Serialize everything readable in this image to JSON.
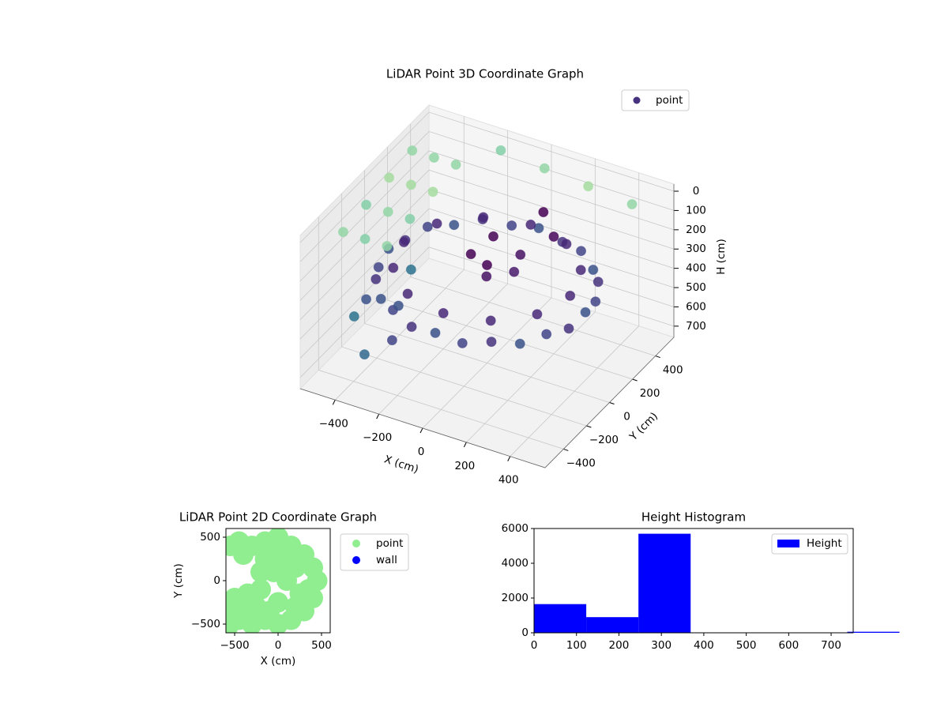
{
  "chart_data": [
    {
      "type": "scatter3d",
      "title": "LiDAR Point 3D Coordinate Graph",
      "xlabel": "X (cm)",
      "ylabel": "Y (cm)",
      "zlabel": "H (cm)",
      "xlim": [
        -560,
        560
      ],
      "ylim": [
        -560,
        560
      ],
      "zlim": [
        -37,
        758
      ],
      "z_inverted": true,
      "legend_loc": "upper right",
      "xticks": [
        {
          "value": -400,
          "label": "−400"
        },
        {
          "value": -200,
          "label": "−200"
        },
        0,
        200,
        400
      ],
      "yticks": [
        {
          "value": -400,
          "label": "−400"
        },
        {
          "value": -200,
          "label": "−200"
        },
        0,
        200,
        400
      ],
      "zticks": [
        0,
        100,
        200,
        300,
        400,
        500,
        600,
        700
      ],
      "series": [
        {
          "name": "point",
          "color": "#46327e",
          "x": [
            450,
            435,
            390,
            318,
            225,
            116,
            0,
            -116,
            -225,
            -318,
            -390,
            -435,
            -450,
            -435,
            -390,
            -318,
            -225,
            -116,
            0,
            116,
            225,
            318,
            390,
            435,
            380,
            329,
            190,
            0,
            -190,
            -329,
            -380,
            -329,
            -190,
            0,
            190,
            329,
            0,
            100,
            -100,
            50,
            150,
            -50,
            200,
            100,
            -500,
            -500,
            -500,
            -500,
            -400,
            -400,
            -400,
            -400,
            -300,
            -300,
            -300,
            -300,
            -200,
            0,
            200,
            400,
            -500,
            -450,
            -350,
            -300,
            -250,
            -400
          ],
          "y": [
            0,
            116,
            225,
            318,
            390,
            435,
            450,
            435,
            390,
            318,
            225,
            116,
            0,
            -116,
            -225,
            -318,
            -390,
            -435,
            -450,
            -435,
            -390,
            -318,
            -225,
            -116,
            0,
            190,
            329,
            380,
            329,
            190,
            0,
            -190,
            -329,
            -380,
            -329,
            -190,
            0,
            100,
            50,
            -100,
            -50,
            150,
            200,
            300,
            -300,
            -100,
            100,
            300,
            -300,
            -100,
            100,
            300,
            -300,
            -100,
            100,
            300,
            500,
            500,
            500,
            500,
            -100,
            -300,
            -400,
            -200,
            -350,
            100
          ],
          "h": [
            330,
            350,
            330,
            350,
            330,
            350,
            330,
            350,
            330,
            350,
            330,
            350,
            330,
            350,
            330,
            350,
            330,
            350,
            330,
            350,
            330,
            350,
            330,
            350,
            270,
            270,
            270,
            270,
            270,
            270,
            270,
            270,
            270,
            270,
            270,
            270,
            250,
            220,
            260,
            230,
            200,
            210,
            150,
            120,
            80,
            60,
            40,
            20,
            80,
            60,
            40,
            20,
            80,
            60,
            40,
            20,
            30,
            50,
            70,
            90,
            550,
            500,
            600,
            450,
            520,
            480
          ],
          "colors": [
            "#3b528b",
            "#414487",
            "#46327e",
            "#3b528b",
            "#414487",
            "#46327e",
            "#3b528b",
            "#414487",
            "#46327e",
            "#3b528b",
            "#414487",
            "#46327e",
            "#3b528b",
            "#414487",
            "#46327e",
            "#3b528b",
            "#414487",
            "#46327e",
            "#3b528b",
            "#414487",
            "#46327e",
            "#3b528b",
            "#414487",
            "#46327e",
            "#482878",
            "#482878",
            "#482878",
            "#482878",
            "#482878",
            "#482878",
            "#482878",
            "#482878",
            "#482878",
            "#482878",
            "#482878",
            "#482878",
            "#440154",
            "#471063",
            "#440154",
            "#471063",
            "#481a6c",
            "#440154",
            "#450559",
            "#440154",
            "#93d6a6",
            "#84cfa8",
            "#a6dca0",
            "#93d6a6",
            "#84cfa8",
            "#93d6a6",
            "#a6dca0",
            "#93d6a6",
            "#93d6a6",
            "#84cfa8",
            "#a6dca0",
            "#93d6a6",
            "#84cfa8",
            "#93d6a6",
            "#a6dca0",
            "#93d6a6",
            "#3b528b",
            "#2c728e",
            "#31688e",
            "#3b528b",
            "#414487",
            "#2c728e"
          ]
        }
      ]
    },
    {
      "type": "scatter",
      "title": "LiDAR Point 2D Coordinate Graph",
      "xlabel": "X (cm)",
      "ylabel": "Y (cm)",
      "xlim": [
        -600,
        600
      ],
      "ylim": [
        -600,
        600
      ],
      "legend_loc": "outside right",
      "xticks": [
        {
          "value": -500,
          "label": "−500"
        },
        0,
        500
      ],
      "yticks": [
        {
          "value": -500,
          "label": "−500"
        },
        0,
        500
      ],
      "series": [
        {
          "name": "point",
          "color": "#90ee90",
          "x": [
            0,
            -150,
            150,
            300,
            400,
            450,
            400,
            300,
            150,
            0,
            -150,
            -300,
            -450,
            -550,
            -500,
            -350,
            -200,
            -200,
            -150,
            -300,
            -450,
            -550,
            -400,
            0,
            200,
            100,
            250,
            0,
            -100,
            100,
            -50,
            200,
            350,
            -400,
            -250,
            -570
          ],
          "y": [
            500,
            450,
            400,
            300,
            150,
            0,
            -200,
            -350,
            -450,
            -500,
            -450,
            -500,
            -450,
            -350,
            -200,
            -150,
            -100,
            100,
            250,
            400,
            450,
            400,
            300,
            300,
            150,
            0,
            -150,
            -250,
            -350,
            200,
            100,
            -300,
            -100,
            -350,
            -300,
            -520
          ]
        },
        {
          "name": "wall",
          "color": "#0000ff",
          "x": [],
          "y": []
        }
      ]
    },
    {
      "type": "histogram",
      "title": "Height Histogram",
      "legend_loc": "upper right",
      "xlim": [
        0,
        752
      ],
      "ylim": [
        0,
        6000
      ],
      "xticks": [
        0,
        100,
        200,
        300,
        400,
        500,
        600,
        700
      ],
      "yticks": [
        0,
        2000,
        4000,
        6000
      ],
      "bins": [
        0,
        123,
        246,
        369,
        492,
        615,
        738,
        861
      ],
      "series": [
        {
          "name": "Height",
          "color": "#0000ff",
          "values": [
            1650,
            900,
            5700,
            0,
            0,
            20,
            60
          ]
        }
      ]
    }
  ]
}
